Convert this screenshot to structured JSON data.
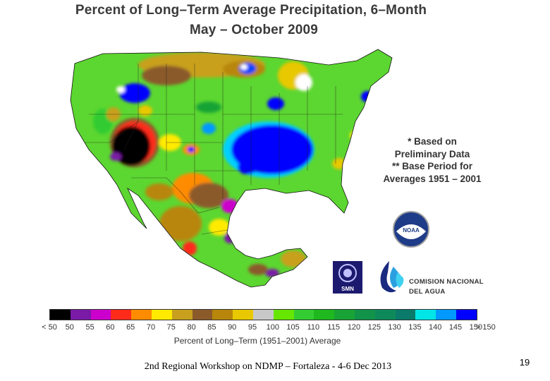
{
  "title": {
    "line1": "Percent of Long–Term Average Precipitation, 6–Month",
    "line2": "May – October 2009"
  },
  "notes": {
    "line1": "* Based on",
    "line2": "Preliminary Data",
    "line3": "** Base Period for",
    "line4": "Averages 1951 – 2001"
  },
  "logos": {
    "noaa_text": "NOAA",
    "smn_text": "SMN",
    "conagua_line1": "COMISION NACIONAL",
    "conagua_line2": "DEL AGUA"
  },
  "legend": {
    "colors": [
      "#000000",
      "#7a1aa6",
      "#cc00cc",
      "#ff2a1a",
      "#ff8c00",
      "#ffea00",
      "#c8a01e",
      "#8b5a2b",
      "#b8860b",
      "#e8c800",
      "#c8c8c8",
      "#66e600",
      "#33cc33",
      "#1fb81f",
      "#19a336",
      "#12934a",
      "#0e8a5a",
      "#0a7a6a",
      "#00e6e6",
      "#0099ff",
      "#0000ff"
    ],
    "ticks": [
      "< 50",
      "50",
      "55",
      "60",
      "65",
      "70",
      "75",
      "80",
      "85",
      "90",
      "95",
      "100",
      "105",
      "110",
      "115",
      "120",
      "125",
      "130",
      "135",
      "140",
      "145",
      "150",
      "> 150"
    ],
    "label": "Percent of Long–Term (1951–2001) Average"
  },
  "footer": {
    "text": "2nd Regional Workshop on NDMP – Fortaleza - 4-6 Dec 2013",
    "page_number": "19"
  }
}
